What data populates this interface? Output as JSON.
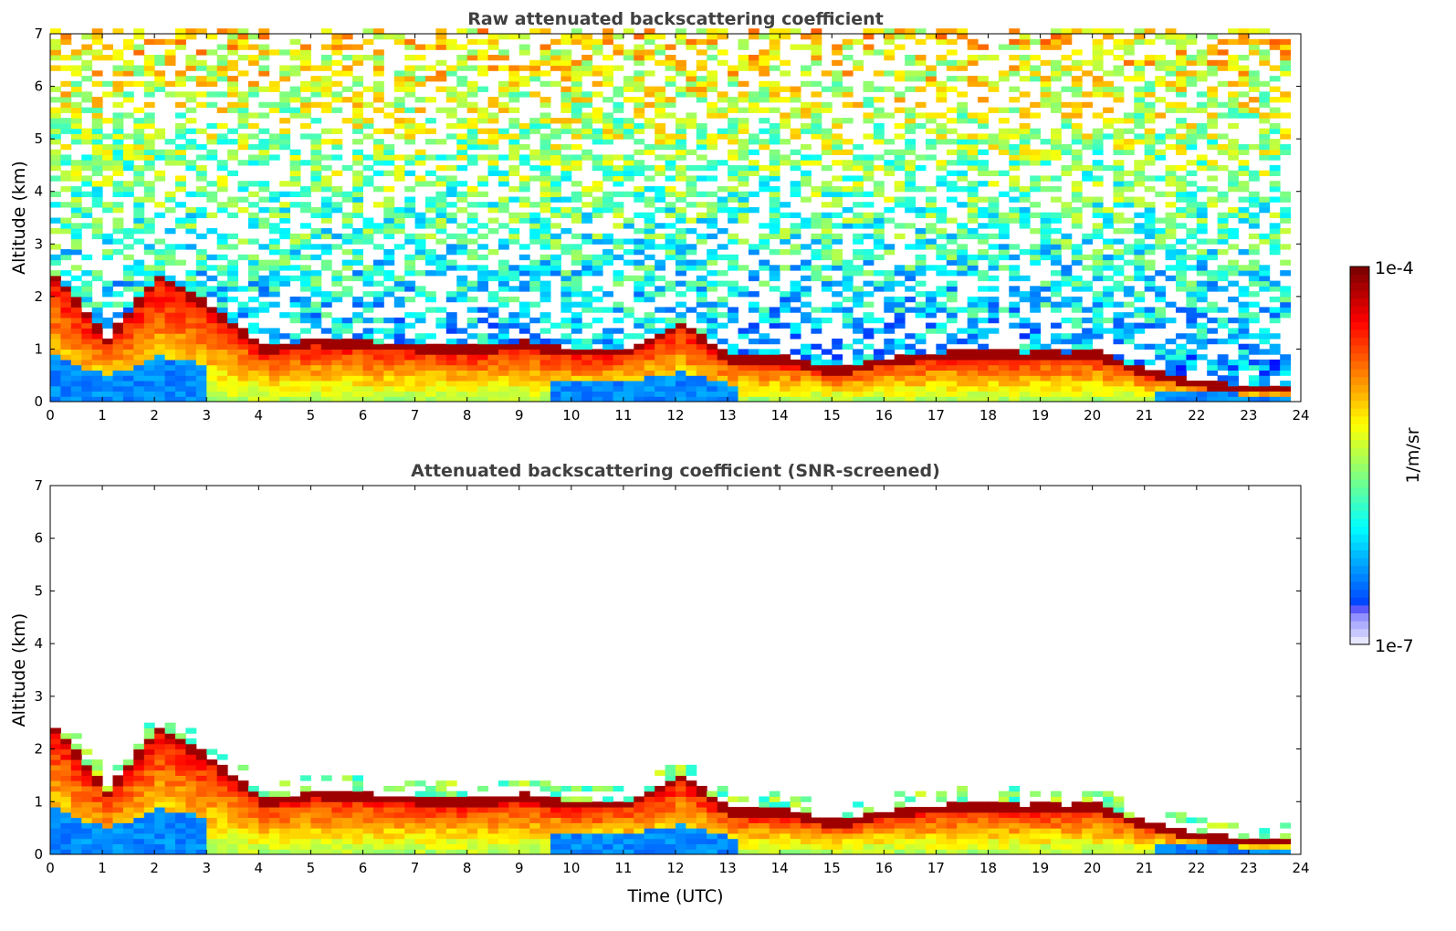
{
  "chart_data": [
    {
      "type": "heatmap",
      "title": "Raw attenuated backscattering coefficient",
      "xlabel": "",
      "ylabel": "Altitude (km)",
      "xlim": [
        0,
        24
      ],
      "ylim": [
        0,
        7
      ],
      "xticks": [
        "0",
        "1",
        "2",
        "3",
        "4",
        "5",
        "6",
        "7",
        "8",
        "9",
        "10",
        "11",
        "12",
        "13",
        "14",
        "15",
        "16",
        "17",
        "18",
        "19",
        "20",
        "21",
        "22",
        "23",
        "24"
      ],
      "yticks": [
        "0",
        "1",
        "2",
        "3",
        "4",
        "5",
        "6",
        "7"
      ],
      "screened": false
    },
    {
      "type": "heatmap",
      "title": "Attenuated backscattering coefficient (SNR-screened)",
      "xlabel": "Time (UTC)",
      "ylabel": "Altitude (km)",
      "xlim": [
        0,
        24
      ],
      "ylim": [
        0,
        7
      ],
      "xticks": [
        "0",
        "1",
        "2",
        "3",
        "4",
        "5",
        "6",
        "7",
        "8",
        "9",
        "10",
        "11",
        "12",
        "13",
        "14",
        "15",
        "16",
        "17",
        "18",
        "19",
        "20",
        "21",
        "22",
        "23",
        "24"
      ],
      "yticks": [
        "0",
        "1",
        "2",
        "3",
        "4",
        "5",
        "6",
        "7"
      ],
      "screened": true
    }
  ],
  "colorbar": {
    "label": "1/m/sr",
    "min_label": "1e-7",
    "max_label": "1e-4",
    "scale": "log",
    "colormap": "jet"
  },
  "layer": {
    "data_end_hour": 23.65,
    "hours": [
      0,
      1,
      2,
      3,
      4,
      5,
      6,
      7,
      8,
      9,
      10,
      11,
      12,
      13,
      14,
      15,
      16,
      17,
      18,
      19,
      20,
      21,
      22,
      23
    ],
    "layer_top_km": [
      2.4,
      1.2,
      2.4,
      1.8,
      1.0,
      1.15,
      1.1,
      1.05,
      1.0,
      1.1,
      0.95,
      1.0,
      1.5,
      0.8,
      0.8,
      0.6,
      0.8,
      0.9,
      0.9,
      0.9,
      0.9,
      0.55,
      0.35,
      0.25
    ],
    "surface_clear_hours": [
      [
        0,
        3
      ],
      [
        9.5,
        13
      ],
      [
        21,
        23.7
      ]
    ]
  }
}
